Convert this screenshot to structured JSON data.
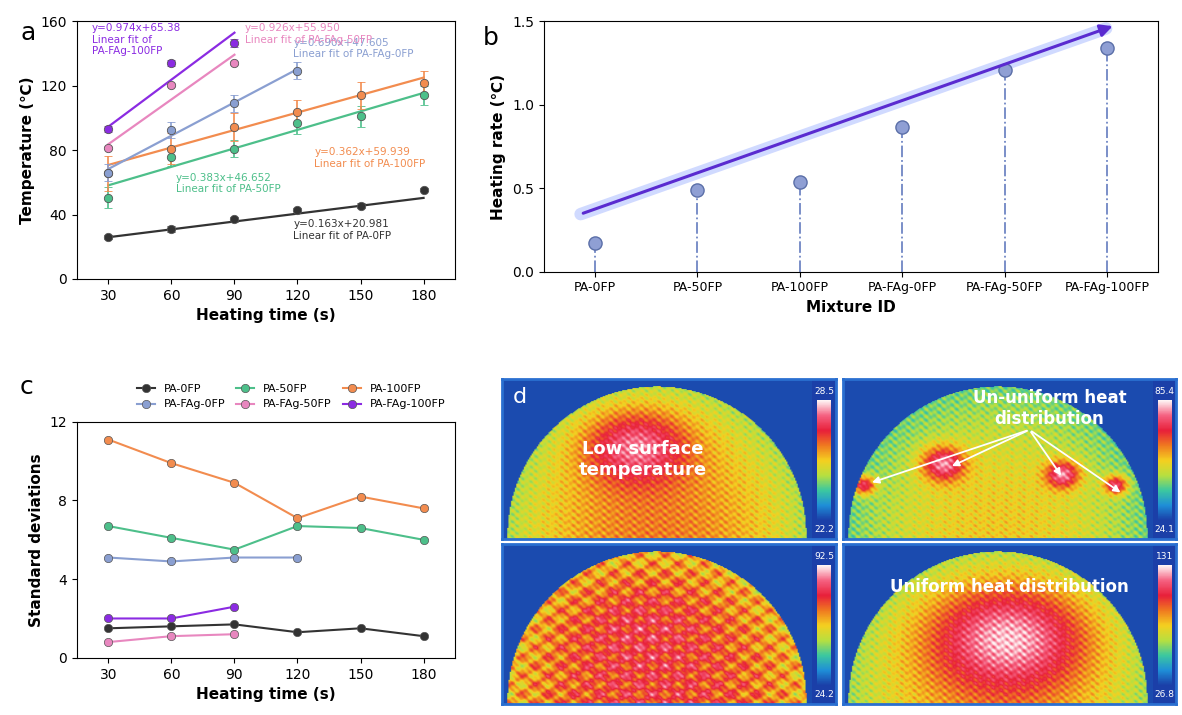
{
  "chart_data": [
    {
      "type": "scatter",
      "label": "a",
      "x_label": "Heating time (s)",
      "y_label": "Temperature (℃)",
      "xlim": [
        15,
        195
      ],
      "xticks": [
        30,
        60,
        90,
        120,
        150,
        180
      ],
      "ylim": [
        0,
        160
      ],
      "yticks": [
        0,
        40,
        80,
        120,
        160
      ],
      "marker": "o",
      "series": [
        {
          "name": "PA-0FP",
          "color": "#333333",
          "x": [
            30,
            60,
            90,
            120,
            150,
            180
          ],
          "values": [
            26,
            31,
            37,
            42.5,
            45.5,
            55.5
          ],
          "errors": [
            1.5,
            1.6,
            1.7,
            1.3,
            1.5,
            1.1
          ],
          "fit": {
            "x": [
              30,
              180
            ],
            "y": [
              25.87,
              50.32
            ]
          },
          "fit_label": "y=0.163x+20.981\nLinear fit of PA-0FP"
        },
        {
          "name": "PA-50FP",
          "color": "#4dbf8a",
          "x": [
            30,
            60,
            90,
            120,
            150,
            180
          ],
          "values": [
            50.5,
            76,
            81,
            97,
            101,
            114
          ],
          "errors": [
            6.7,
            6.1,
            5.5,
            6.7,
            6.6,
            6.0
          ],
          "fit": {
            "x": [
              30,
              180
            ],
            "y": [
              58.14,
              115.59
            ]
          },
          "fit_label": "y=0.383x+46.652\nLinear fit of PA-50FP"
        },
        {
          "name": "PA-100FP",
          "color": "#f28c4f",
          "x": [
            30,
            60,
            90,
            120,
            150,
            180
          ],
          "values": [
            65.5,
            81,
            94.5,
            104,
            114,
            121.5
          ],
          "errors": [
            11.1,
            9.9,
            8.9,
            7.1,
            8.2,
            7.6
          ],
          "fit": {
            "x": [
              30,
              180
            ],
            "y": [
              70.8,
              125.1
            ]
          },
          "fit_label": "y=0.362x+59.939\nLinear fit of PA-100FP"
        },
        {
          "name": "PA-FAg-0FP",
          "color": "#8a9fd1",
          "x": [
            30,
            60,
            90,
            120
          ],
          "values": [
            66,
            92.5,
            109,
            129.5
          ],
          "errors": [
            5.1,
            4.9,
            5.1,
            5.1
          ],
          "fit": {
            "x": [
              30,
              120
            ],
            "y": [
              68.3,
              130.4
            ]
          },
          "fit_label": "y=0.690x+47.605\nLinear fit of PA-FAg-0FP"
        },
        {
          "name": "PA-FAg-50FP",
          "color": "#e887bf",
          "x": [
            30,
            60,
            90
          ],
          "values": [
            81.5,
            120.5,
            134
          ],
          "errors": [
            0.8,
            1.1,
            1.2
          ],
          "fit": {
            "x": [
              30,
              90
            ],
            "y": [
              83.7,
              139.3
            ]
          },
          "fit_label": "y=0.926x+55.950\nLinear fit of PA-FAg-50FP"
        },
        {
          "name": "PA-FAg-100FP",
          "color": "#8b2be2",
          "x": [
            30,
            60,
            90
          ],
          "values": [
            93,
            134,
            146.5
          ],
          "errors": [
            2.0,
            2.0,
            2.6
          ],
          "fit": {
            "x": [
              30,
              90
            ],
            "y": [
              94.6,
              153.0
            ]
          },
          "fit_label": "y=0.974x+65.38\nLinear fit of\nPA-FAg-100FP"
        }
      ]
    },
    {
      "type": "stem",
      "label": "b",
      "x_label": "Mixture ID",
      "y_label": "Heating rate (℃)",
      "categories": [
        "PA-0FP",
        "PA-50FP",
        "PA-100FP",
        "PA-FAg-0FP",
        "PA-FAg-50FP",
        "PA-FAg-100FP"
      ],
      "values": [
        0.17,
        0.49,
        0.54,
        0.87,
        1.21,
        1.34
      ],
      "color": "#8f9fd4",
      "marker": "o",
      "line_style": "dashdot",
      "ylim": [
        0,
        1.5
      ],
      "yticks": [
        {
          "value": 0,
          "label": "0.0"
        },
        0.5,
        {
          "value": 1,
          "label": "1.0"
        },
        1.5
      ]
    },
    {
      "type": "line",
      "label": "c",
      "x_label": "Heating time (s)",
      "y_label": "Standard deviations",
      "xlim": [
        15,
        195
      ],
      "xticks": [
        30,
        60,
        90,
        120,
        150,
        180
      ],
      "ylim": [
        0,
        12
      ],
      "yticks": [
        0,
        4,
        8,
        12
      ],
      "legend": "upper right",
      "marker": "o",
      "series": [
        {
          "name": "PA-0FP",
          "color": "#333333",
          "x": [
            30,
            60,
            90,
            120,
            150,
            180
          ],
          "values": [
            1.5,
            1.6,
            1.7,
            1.3,
            1.5,
            1.1
          ]
        },
        {
          "name": "PA-FAg-0FP",
          "color": "#8a9fd1",
          "x": [
            30,
            60,
            90,
            120
          ],
          "values": [
            5.1,
            4.9,
            5.1,
            5.1
          ]
        },
        {
          "name": "PA-50FP",
          "color": "#4dbf8a",
          "x": [
            30,
            60,
            90,
            120,
            150,
            180
          ],
          "values": [
            6.7,
            6.1,
            5.5,
            6.7,
            6.6,
            6.0
          ]
        },
        {
          "name": "PA-FAg-50FP",
          "color": "#e887bf",
          "x": [
            30,
            60,
            90
          ],
          "values": [
            0.8,
            1.1,
            1.2
          ]
        },
        {
          "name": "PA-100FP",
          "color": "#f28c4f",
          "x": [
            30,
            60,
            90,
            120,
            150,
            180
          ],
          "values": [
            11.1,
            9.9,
            8.9,
            7.1,
            8.2,
            7.6
          ]
        },
        {
          "name": "PA-FAg-100FP",
          "color": "#8b2be2",
          "x": [
            30,
            60,
            90
          ],
          "values": [
            2.0,
            2.0,
            2.6
          ]
        }
      ]
    }
  ],
  "thermal_images": {
    "label": "d",
    "panels": [
      {
        "text": "Low surface\ntemperature",
        "colorbar": {
          "max": 28.5,
          "min": 22.2
        }
      },
      {
        "text": "Un-uniform heat\ndistribution",
        "colorbar": {
          "max": 85.4,
          "min": 24.1
        }
      },
      {
        "colorbar": {
          "max": 92.5,
          "min": 24.2
        }
      },
      {
        "text": "Uniform heat distribution",
        "colorbar": {
          "max": 131,
          "min": 26.8
        }
      }
    ]
  }
}
